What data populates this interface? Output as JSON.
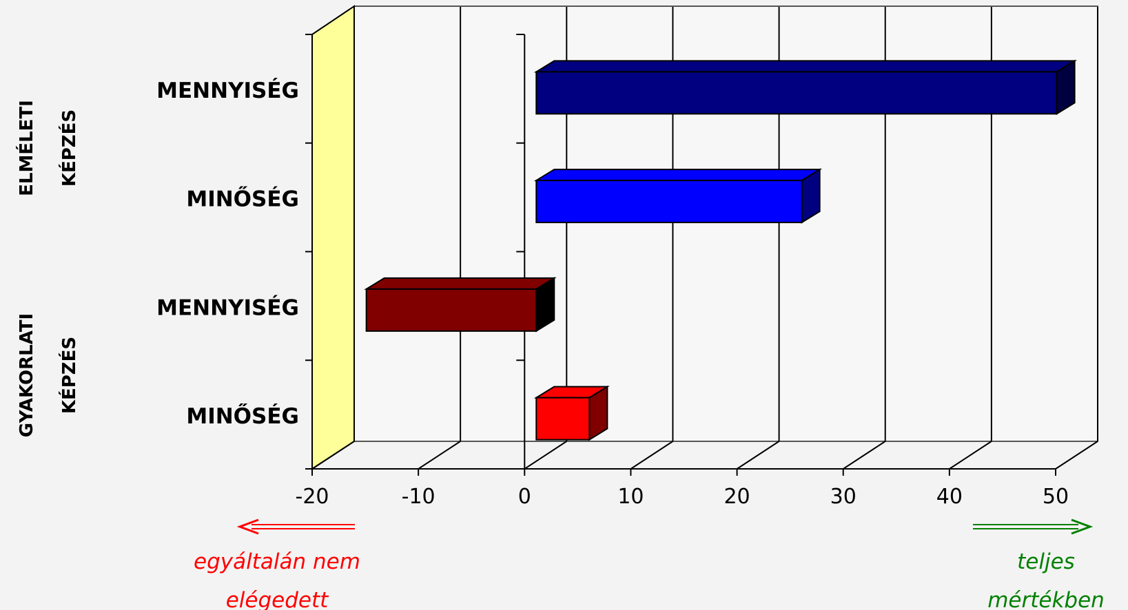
{
  "chart_data": {
    "type": "bar",
    "orientation": "horizontal",
    "three_d": true,
    "categories": [
      "MENNYISÉG",
      "MINŐSÉG",
      "MENNYISÉG",
      "MINŐSÉG"
    ],
    "groups": [
      {
        "label_lines": [
          "ELMÉLETI",
          "KÉPZÉS"
        ],
        "categories": [
          0,
          1
        ]
      },
      {
        "label_lines": [
          "GYAKORLATI",
          "KÉPZÉS"
        ],
        "categories": [
          2,
          3
        ]
      }
    ],
    "values": [
      49,
      25,
      -16,
      5
    ],
    "bar_colors": [
      "#000080",
      "#0000ff",
      "#800000",
      "#ff0000"
    ],
    "xlim": [
      -20,
      50
    ],
    "xticks": [
      "-20",
      "-10",
      "0",
      "10",
      "20",
      "30",
      "40",
      "50"
    ],
    "grid": true,
    "left_wall_color": "#ffff99",
    "annotations": {
      "left_lines": [
        "egyáltalán nem",
        "elégedett"
      ],
      "left_color": "#ff0000",
      "right_lines": [
        "teljes",
        "mértékben"
      ],
      "right_color": "#008000"
    }
  }
}
